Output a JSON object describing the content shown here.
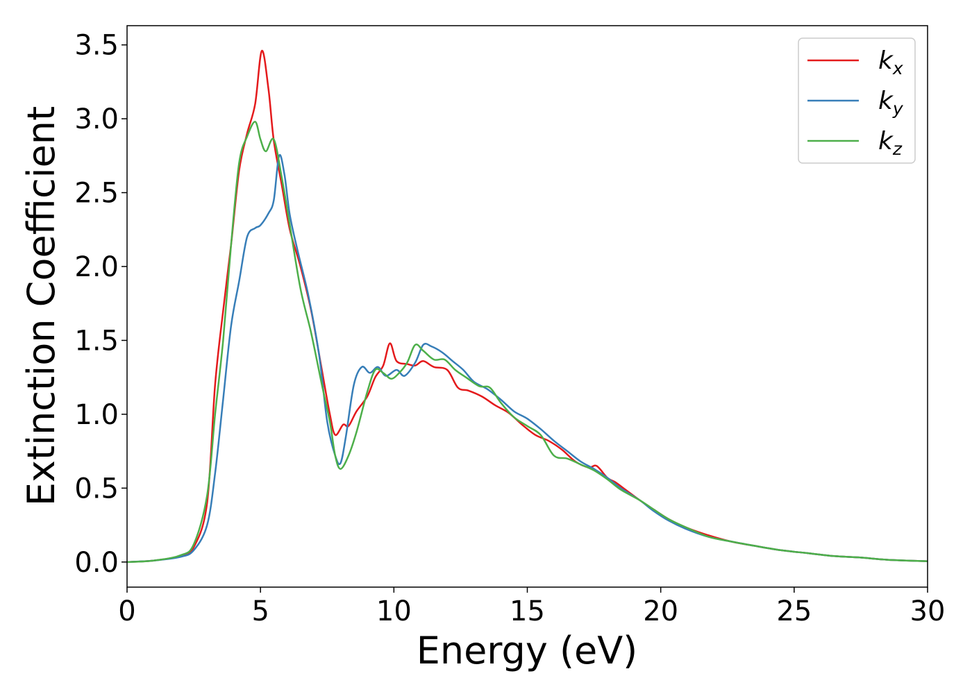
{
  "chart_data": {
    "type": "line",
    "xlabel": "Energy (eV)",
    "ylabel": "Extinction Coefficient",
    "xlim": [
      0,
      30
    ],
    "ylim": [
      -0.17,
      3.63
    ],
    "xticks": [
      "0",
      "5",
      "10",
      "15",
      "20",
      "25",
      "30"
    ],
    "yticks": [
      "0.0",
      "0.5",
      "1.0",
      "1.5",
      "2.0",
      "2.5",
      "3.0",
      "3.5"
    ],
    "grid": false,
    "legend_position": "top-right",
    "series": [
      {
        "name": "k_x",
        "legend_main": "k",
        "legend_sub": "x",
        "color": "#e41a1c",
        "points": [
          [
            0,
            0.0
          ],
          [
            1,
            0.01
          ],
          [
            2,
            0.04
          ],
          [
            2.5,
            0.1
          ],
          [
            3,
            0.4
          ],
          [
            3.3,
            1.2
          ],
          [
            3.6,
            1.7
          ],
          [
            3.9,
            2.15
          ],
          [
            4.2,
            2.65
          ],
          [
            4.5,
            2.9
          ],
          [
            4.8,
            3.1
          ],
          [
            5.05,
            3.46
          ],
          [
            5.3,
            3.2
          ],
          [
            5.5,
            2.85
          ],
          [
            5.8,
            2.55
          ],
          [
            6.1,
            2.25
          ],
          [
            6.5,
            2.0
          ],
          [
            6.9,
            1.7
          ],
          [
            7.3,
            1.3
          ],
          [
            7.6,
            1.0
          ],
          [
            7.8,
            0.86
          ],
          [
            8.1,
            0.93
          ],
          [
            8.3,
            0.92
          ],
          [
            8.6,
            1.02
          ],
          [
            9.0,
            1.12
          ],
          [
            9.3,
            1.25
          ],
          [
            9.6,
            1.33
          ],
          [
            9.85,
            1.48
          ],
          [
            10.1,
            1.36
          ],
          [
            10.5,
            1.34
          ],
          [
            10.8,
            1.33
          ],
          [
            11.1,
            1.36
          ],
          [
            11.5,
            1.32
          ],
          [
            12.0,
            1.3
          ],
          [
            12.4,
            1.18
          ],
          [
            12.8,
            1.16
          ],
          [
            13.3,
            1.12
          ],
          [
            13.8,
            1.06
          ],
          [
            14.3,
            1.01
          ],
          [
            14.8,
            0.93
          ],
          [
            15.3,
            0.86
          ],
          [
            15.8,
            0.82
          ],
          [
            16.3,
            0.76
          ],
          [
            16.8,
            0.68
          ],
          [
            17.3,
            0.64
          ],
          [
            17.6,
            0.65
          ],
          [
            18.0,
            0.57
          ],
          [
            18.3,
            0.54
          ],
          [
            18.6,
            0.5
          ],
          [
            19.2,
            0.42
          ],
          [
            19.7,
            0.36
          ],
          [
            20.3,
            0.29
          ],
          [
            21.0,
            0.23
          ],
          [
            21.8,
            0.18
          ],
          [
            22.6,
            0.14
          ],
          [
            23.5,
            0.11
          ],
          [
            24.5,
            0.08
          ],
          [
            25.5,
            0.06
          ],
          [
            26.5,
            0.04
          ],
          [
            27.5,
            0.03
          ],
          [
            28.5,
            0.015
          ],
          [
            30,
            0.005
          ]
        ]
      },
      {
        "name": "k_y",
        "legend_main": "k",
        "legend_sub": "y",
        "color": "#377eb8",
        "points": [
          [
            0,
            0.0
          ],
          [
            1,
            0.01
          ],
          [
            2,
            0.035
          ],
          [
            2.5,
            0.08
          ],
          [
            3,
            0.25
          ],
          [
            3.3,
            0.6
          ],
          [
            3.6,
            1.1
          ],
          [
            3.9,
            1.6
          ],
          [
            4.2,
            1.9
          ],
          [
            4.5,
            2.2
          ],
          [
            4.8,
            2.26
          ],
          [
            5.0,
            2.28
          ],
          [
            5.3,
            2.36
          ],
          [
            5.5,
            2.45
          ],
          [
            5.7,
            2.75
          ],
          [
            5.9,
            2.62
          ],
          [
            6.1,
            2.35
          ],
          [
            6.4,
            2.1
          ],
          [
            6.8,
            1.8
          ],
          [
            7.2,
            1.4
          ],
          [
            7.5,
            0.95
          ],
          [
            7.8,
            0.72
          ],
          [
            8.0,
            0.67
          ],
          [
            8.2,
            0.85
          ],
          [
            8.5,
            1.2
          ],
          [
            8.8,
            1.32
          ],
          [
            9.1,
            1.28
          ],
          [
            9.4,
            1.32
          ],
          [
            9.7,
            1.26
          ],
          [
            10.1,
            1.3
          ],
          [
            10.4,
            1.26
          ],
          [
            10.8,
            1.35
          ],
          [
            11.1,
            1.47
          ],
          [
            11.4,
            1.46
          ],
          [
            11.8,
            1.42
          ],
          [
            12.2,
            1.36
          ],
          [
            12.6,
            1.3
          ],
          [
            13.0,
            1.22
          ],
          [
            13.5,
            1.17
          ],
          [
            14.0,
            1.1
          ],
          [
            14.5,
            1.02
          ],
          [
            15.0,
            0.97
          ],
          [
            15.5,
            0.9
          ],
          [
            16.0,
            0.82
          ],
          [
            16.5,
            0.75
          ],
          [
            17.0,
            0.68
          ],
          [
            17.5,
            0.63
          ],
          [
            18.0,
            0.57
          ],
          [
            18.5,
            0.5
          ],
          [
            19.2,
            0.42
          ],
          [
            19.7,
            0.35
          ],
          [
            20.3,
            0.28
          ],
          [
            21.0,
            0.22
          ],
          [
            21.8,
            0.17
          ],
          [
            22.6,
            0.14
          ],
          [
            23.5,
            0.11
          ],
          [
            24.5,
            0.08
          ],
          [
            25.5,
            0.06
          ],
          [
            26.5,
            0.04
          ],
          [
            27.5,
            0.03
          ],
          [
            28.5,
            0.015
          ],
          [
            30,
            0.005
          ]
        ]
      },
      {
        "name": "k_z",
        "legend_main": "k",
        "legend_sub": "z",
        "color": "#4daf4a",
        "points": [
          [
            0,
            0.0
          ],
          [
            1,
            0.01
          ],
          [
            2,
            0.045
          ],
          [
            2.5,
            0.12
          ],
          [
            3,
            0.45
          ],
          [
            3.3,
            1.0
          ],
          [
            3.6,
            1.5
          ],
          [
            3.9,
            2.15
          ],
          [
            4.2,
            2.7
          ],
          [
            4.5,
            2.88
          ],
          [
            4.8,
            2.98
          ],
          [
            5.0,
            2.86
          ],
          [
            5.2,
            2.78
          ],
          [
            5.5,
            2.86
          ],
          [
            5.8,
            2.6
          ],
          [
            6.1,
            2.28
          ],
          [
            6.5,
            1.85
          ],
          [
            6.9,
            1.55
          ],
          [
            7.3,
            1.2
          ],
          [
            7.6,
            0.95
          ],
          [
            7.8,
            0.72
          ],
          [
            8.0,
            0.63
          ],
          [
            8.3,
            0.72
          ],
          [
            8.6,
            0.88
          ],
          [
            9.0,
            1.15
          ],
          [
            9.3,
            1.3
          ],
          [
            9.6,
            1.28
          ],
          [
            9.9,
            1.24
          ],
          [
            10.2,
            1.28
          ],
          [
            10.5,
            1.35
          ],
          [
            10.8,
            1.47
          ],
          [
            11.1,
            1.43
          ],
          [
            11.5,
            1.37
          ],
          [
            11.9,
            1.37
          ],
          [
            12.3,
            1.3
          ],
          [
            12.7,
            1.25
          ],
          [
            13.2,
            1.19
          ],
          [
            13.6,
            1.18
          ],
          [
            14.0,
            1.08
          ],
          [
            14.5,
            0.98
          ],
          [
            15.0,
            0.92
          ],
          [
            15.5,
            0.86
          ],
          [
            16.0,
            0.72
          ],
          [
            16.5,
            0.7
          ],
          [
            17.0,
            0.66
          ],
          [
            17.5,
            0.62
          ],
          [
            18.0,
            0.56
          ],
          [
            18.5,
            0.49
          ],
          [
            19.2,
            0.42
          ],
          [
            19.7,
            0.36
          ],
          [
            20.3,
            0.29
          ],
          [
            21.0,
            0.23
          ],
          [
            21.8,
            0.17
          ],
          [
            22.6,
            0.14
          ],
          [
            23.5,
            0.11
          ],
          [
            24.5,
            0.08
          ],
          [
            25.5,
            0.06
          ],
          [
            26.5,
            0.04
          ],
          [
            27.5,
            0.03
          ],
          [
            28.5,
            0.015
          ],
          [
            30,
            0.005
          ]
        ]
      }
    ]
  }
}
